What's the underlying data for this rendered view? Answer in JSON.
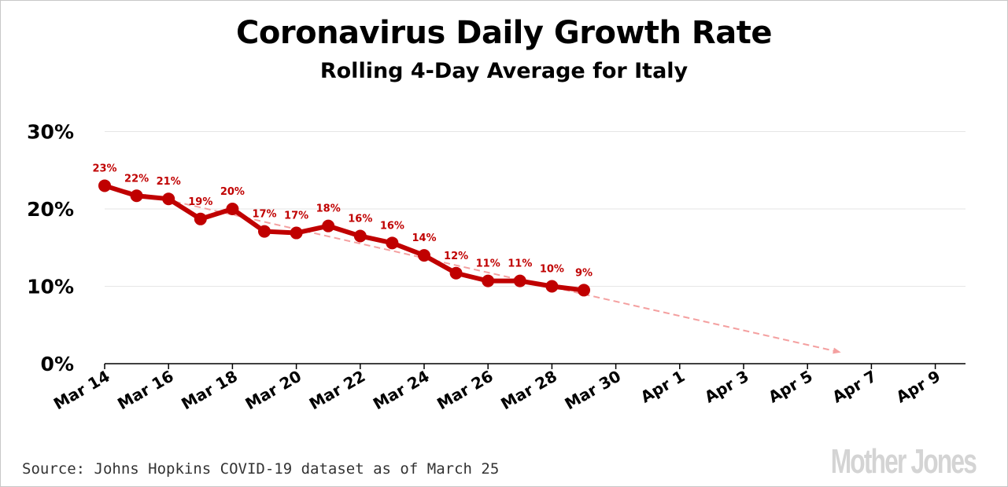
{
  "title": "Coronavirus Daily Growth Rate",
  "subtitle": "Rolling 4-Day Average for Italy",
  "source": "Source: Johns Hopkins COVID-19 dataset as of March 25",
  "logo_text": "MotherJones",
  "colors": {
    "series": "#c00000",
    "trend": "#f4a0a0",
    "grid": "#e6e6e6",
    "axis": "#000000",
    "label": "#c00000"
  },
  "chart_data": {
    "type": "line",
    "x_ticks": [
      "Mar 14",
      "Mar 16",
      "Mar 18",
      "Mar 20",
      "Mar 22",
      "Mar 24",
      "Mar 26",
      "Mar 28",
      "Mar 30",
      "Apr 1",
      "Apr 3",
      "Apr 5",
      "Apr 7",
      "Apr 9"
    ],
    "y_ticks": [
      "0%",
      "10%",
      "20%",
      "30%"
    ],
    "ylim": [
      0,
      30
    ],
    "xlim": [
      "Mar 14",
      "Apr 10"
    ],
    "grid": true,
    "series": [
      {
        "x": [
          "Mar 14",
          "Mar 15",
          "Mar 16",
          "Mar 17",
          "Mar 18",
          "Mar 19",
          "Mar 20",
          "Mar 21",
          "Mar 22",
          "Mar 23",
          "Mar 24",
          "Mar 25",
          "Mar 26",
          "Mar 27",
          "Mar 28",
          "Mar 29"
        ],
        "values": [
          23,
          21.7,
          21.3,
          18.7,
          20,
          17.1,
          16.9,
          17.8,
          16.5,
          15.6,
          14,
          11.7,
          10.7,
          10.7,
          10,
          9.5
        ],
        "labels": [
          "23%",
          "22%",
          "21%",
          "19%",
          "20%",
          "17%",
          "17%",
          "18%",
          "16%",
          "16%",
          "14%",
          "12%",
          "11%",
          "11%",
          "10%",
          "9%"
        ]
      }
    ],
    "trendline": {
      "x": [
        "Mar 14",
        "Apr 6"
      ],
      "values": [
        23,
        1.5
      ],
      "style": "dashed",
      "arrow": true
    }
  }
}
